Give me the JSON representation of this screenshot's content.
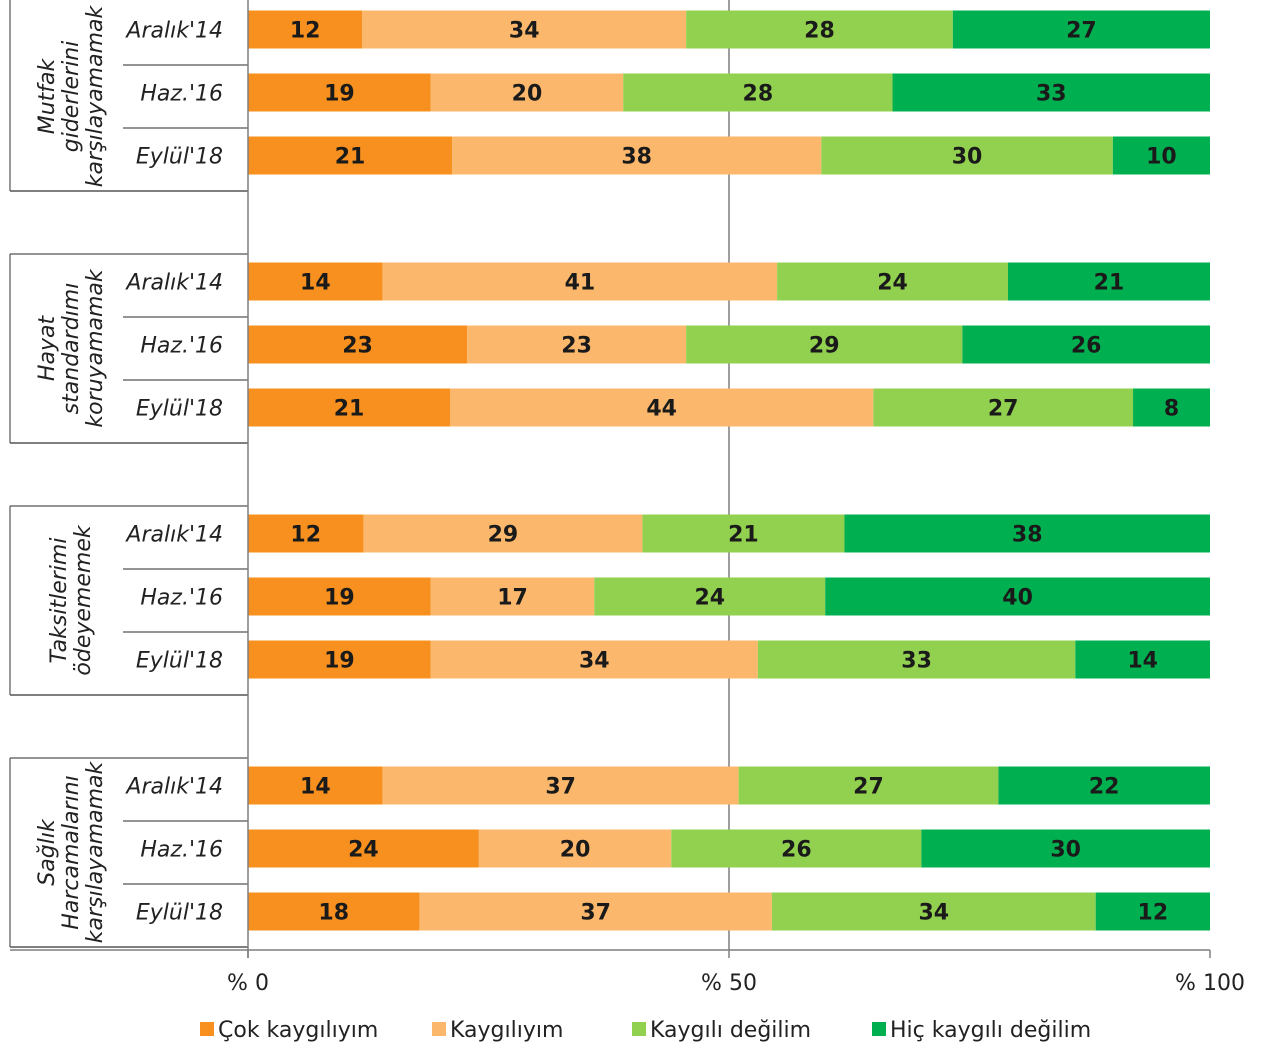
{
  "chart_data": {
    "type": "bar",
    "orientation": "horizontal",
    "stacked": true,
    "x_ticks": [
      "% 0",
      "% 50",
      "% 100"
    ],
    "xlim": [
      0,
      100
    ],
    "gridline_at": 50,
    "legend_position": "bottom",
    "series": [
      {
        "name": "Çok kaygılıyım",
        "color": "#F7901E"
      },
      {
        "name": "Kaygılıyım",
        "color": "#FBB86C"
      },
      {
        "name": "Kaygılı değilim",
        "color": "#92D050"
      },
      {
        "name": "Hiç kaygılı değilim",
        "color": "#00B050"
      }
    ],
    "groups": [
      {
        "label_lines": [
          "Mutfak",
          "giderlerini",
          "karşılayamamak"
        ],
        "rows": [
          {
            "period": "Aralık'14",
            "values": [
              12,
              34,
              28,
              27
            ]
          },
          {
            "period": "Haz.'16",
            "values": [
              19,
              20,
              28,
              33
            ]
          },
          {
            "period": "Eylül'18",
            "values": [
              21,
              38,
              30,
              10
            ]
          }
        ]
      },
      {
        "label_lines": [
          "Hayat",
          "standardımı",
          "koruyamamak"
        ],
        "rows": [
          {
            "period": "Aralık'14",
            "values": [
              14,
              41,
              24,
              21
            ]
          },
          {
            "period": "Haz.'16",
            "values": [
              23,
              23,
              29,
              26
            ]
          },
          {
            "period": "Eylül'18",
            "values": [
              21,
              44,
              27,
              8
            ]
          }
        ]
      },
      {
        "label_lines": [
          "Taksitlerimi",
          "ödeyememek"
        ],
        "rows": [
          {
            "period": "Aralık'14",
            "values": [
              12,
              29,
              21,
              38
            ]
          },
          {
            "period": "Haz.'16",
            "values": [
              19,
              17,
              24,
              40
            ]
          },
          {
            "period": "Eylül'18",
            "values": [
              19,
              34,
              33,
              14
            ]
          }
        ]
      },
      {
        "label_lines": [
          "Sağlık",
          "Harcamalarını",
          "karşılayamamak"
        ],
        "rows": [
          {
            "period": "Aralık'14",
            "values": [
              14,
              37,
              27,
              22
            ]
          },
          {
            "period": "Haz.'16",
            "values": [
              24,
              20,
              26,
              30
            ]
          },
          {
            "period": "Eylül'18",
            "values": [
              18,
              37,
              34,
              12
            ]
          }
        ]
      }
    ]
  }
}
